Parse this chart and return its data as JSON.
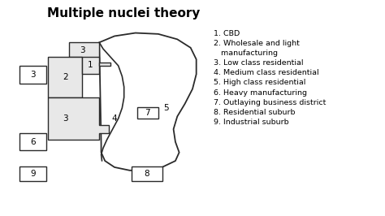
{
  "title": "Multiple nuclei theory",
  "title_fontsize": 11,
  "title_fontweight": "bold",
  "bg_color": "#ffffff",
  "legend_lines": [
    "1. CBD",
    "2. Wholesale and light",
    "   manufacturing",
    "3. Low class residential",
    "4. Medium class residential",
    "5. High class residential",
    "6. Heavy manufacturing",
    "7. Outlaying business district",
    "8. Residential suburb",
    "9. Industrial suburb"
  ],
  "legend_fontsize": 6.8,
  "shape_fill": "#e8e8e8",
  "white_fill": "#ffffff",
  "edge_color": "#2a2a2a",
  "edge_lw": 1.0,
  "label_fontsize": 7.5,
  "xlim": [
    0,
    10
  ],
  "ylim": [
    0,
    10
  ]
}
